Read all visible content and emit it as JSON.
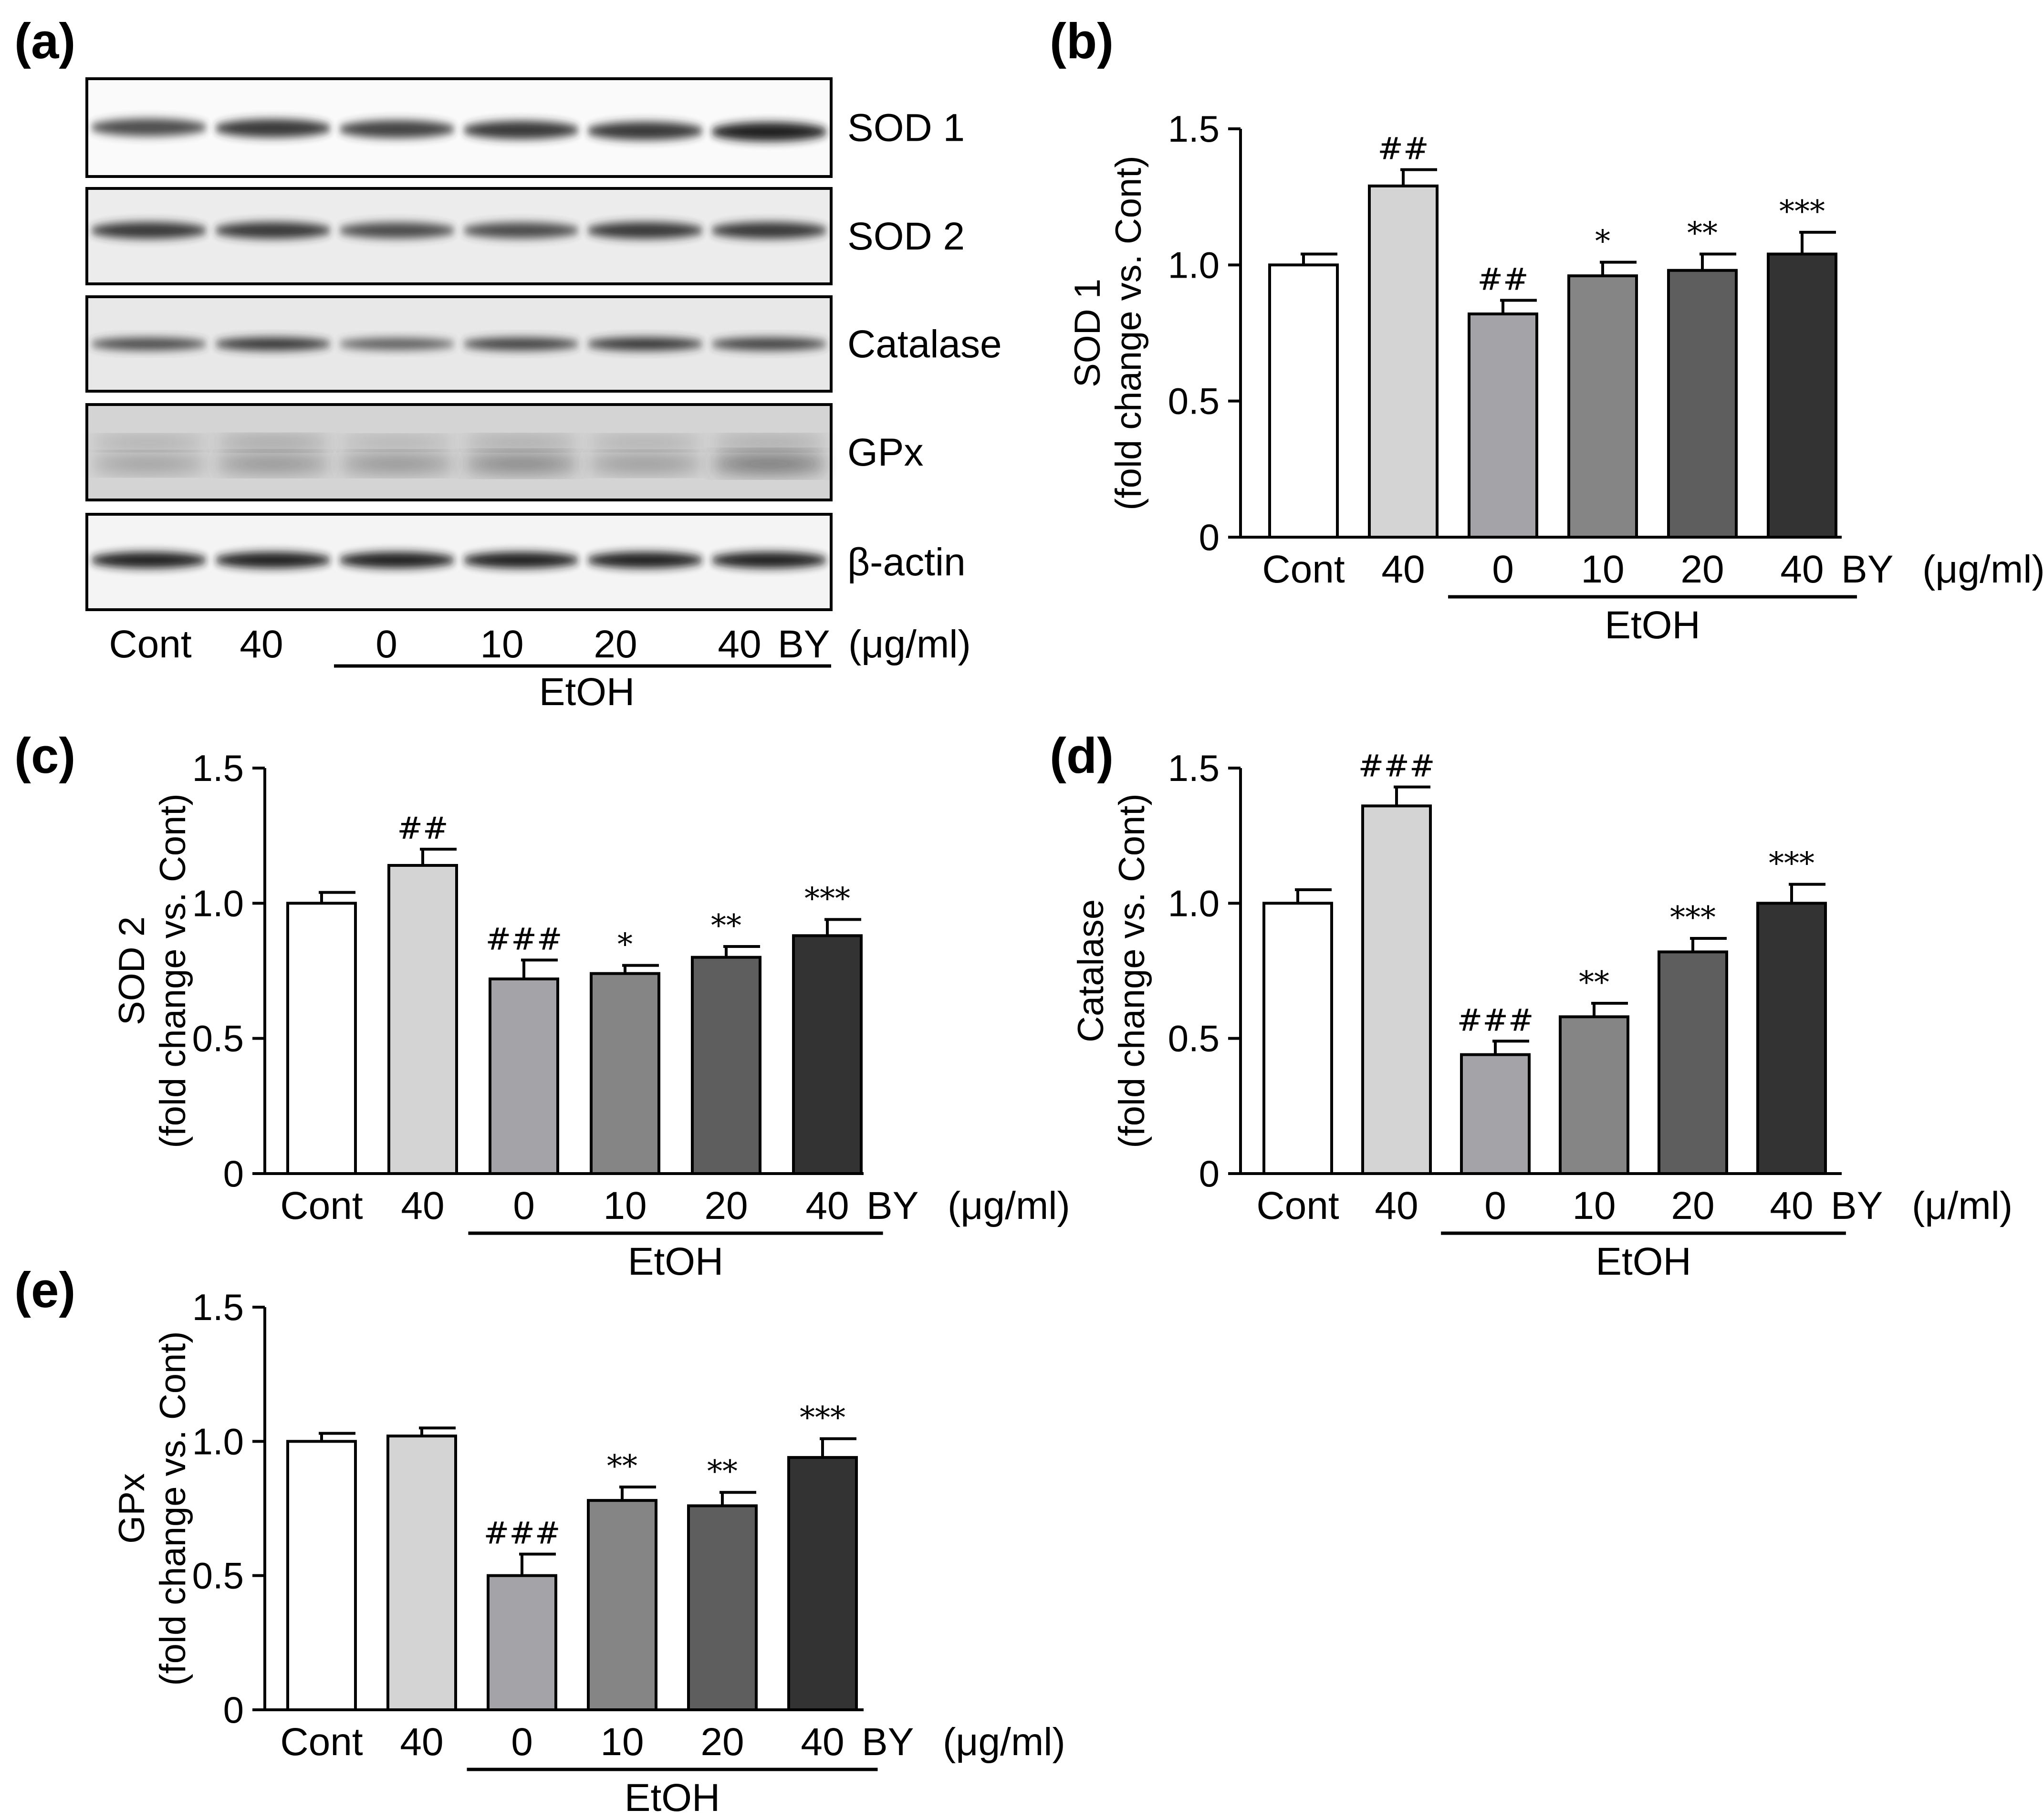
{
  "figure": {
    "panels": [
      "(a)",
      "(b)",
      "(c)",
      "(d)",
      "(e)"
    ]
  },
  "blot": {
    "bands": [
      "SOD 1",
      "SOD 2",
      "Catalase",
      "GPx",
      "β-actin"
    ],
    "lanes": [
      "Cont",
      "40",
      "0",
      "10",
      "20",
      "40"
    ],
    "lane_suffix": "BY",
    "unit": "(μg/ml)",
    "group_label": "EtOH"
  },
  "colors": {
    "bars": [
      "#ffffff",
      "#d4d4d4",
      "#a4a4a8",
      "#858585",
      "#5e5e5e",
      "#333333"
    ],
    "band": "#111111",
    "background": "#ffffff"
  },
  "chart_data": [
    {
      "panel": "(b)",
      "type": "bar",
      "categories": [
        "Cont",
        "40",
        "0",
        "10",
        "20",
        "40"
      ],
      "category_suffix": "BY",
      "unit": "(μg/ml)",
      "group_label": "EtOH",
      "ylabel_line1": "SOD 1",
      "ylabel_line2": "(fold change vs. Cont)",
      "ylim": [
        0,
        1.5
      ],
      "yticks": [
        "0",
        "0.5",
        "1.0",
        "1.5"
      ],
      "values": [
        1.0,
        1.29,
        0.82,
        0.96,
        0.98,
        1.04
      ],
      "errors": [
        0.04,
        0.06,
        0.05,
        0.05,
        0.06,
        0.08
      ],
      "annotations": [
        "",
        "##",
        "##",
        "*",
        "**",
        "***"
      ]
    },
    {
      "panel": "(c)",
      "type": "bar",
      "categories": [
        "Cont",
        "40",
        "0",
        "10",
        "20",
        "40"
      ],
      "category_suffix": "BY",
      "unit": "(μg/ml)",
      "group_label": "EtOH",
      "ylabel_line1": "SOD 2",
      "ylabel_line2": "(fold change vs. Cont)",
      "ylim": [
        0,
        1.5
      ],
      "yticks": [
        "0",
        "0.5",
        "1.0",
        "1.5"
      ],
      "values": [
        1.0,
        1.14,
        0.72,
        0.74,
        0.8,
        0.88
      ],
      "errors": [
        0.04,
        0.06,
        0.07,
        0.03,
        0.04,
        0.06
      ],
      "annotations": [
        "",
        "##",
        "###",
        "*",
        "**",
        "***"
      ]
    },
    {
      "panel": "(d)",
      "type": "bar",
      "categories": [
        "Cont",
        "40",
        "0",
        "10",
        "20",
        "40"
      ],
      "category_suffix": "BY",
      "unit": "(μ/ml)",
      "group_label": "EtOH",
      "ylabel_line1": "Catalase",
      "ylabel_line2": "(fold change vs. Cont)",
      "ylim": [
        0,
        1.5
      ],
      "yticks": [
        "0",
        "0.5",
        "1.0",
        "1.5"
      ],
      "values": [
        1.0,
        1.36,
        0.44,
        0.58,
        0.82,
        1.0
      ],
      "errors": [
        0.05,
        0.07,
        0.05,
        0.05,
        0.05,
        0.07
      ],
      "annotations": [
        "",
        "###",
        "###",
        "**",
        "***",
        "***"
      ]
    },
    {
      "panel": "(e)",
      "type": "bar",
      "categories": [
        "Cont",
        "40",
        "0",
        "10",
        "20",
        "40"
      ],
      "category_suffix": "BY",
      "unit": "(μg/ml)",
      "group_label": "EtOH",
      "ylabel_line1": "GPx",
      "ylabel_line2": "(fold change vs. Cont)",
      "ylim": [
        0,
        1.5
      ],
      "yticks": [
        "0",
        "0.5",
        "1.0",
        "1.5"
      ],
      "values": [
        1.0,
        1.02,
        0.5,
        0.78,
        0.76,
        0.94
      ],
      "errors": [
        0.03,
        0.03,
        0.08,
        0.05,
        0.05,
        0.07
      ],
      "annotations": [
        "",
        "",
        "###",
        "**",
        "**",
        "***"
      ]
    }
  ]
}
